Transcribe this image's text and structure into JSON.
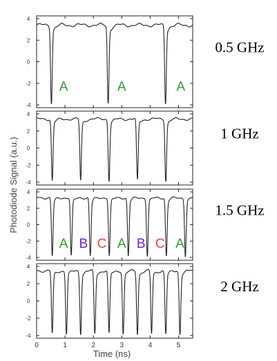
{
  "chart_data": {
    "type": "line",
    "xlabel": "Time (ns)",
    "ylabel": "Photodiode Signal (a.u.)",
    "xlim": [
      0,
      5.5
    ],
    "ylim": [
      -4,
      4
    ],
    "x_ticks": [
      "0",
      "1",
      "2",
      "3",
      "4",
      "5"
    ],
    "y_ticks": [
      "4",
      "2",
      "0",
      "-2",
      "-4"
    ],
    "grid": false,
    "legend": "none",
    "colors": {
      "A": "#2e9a2e",
      "B": "#6a22d8",
      "C": "#f0403c",
      "trace": "#222222"
    },
    "panels": [
      {
        "label": "0.5 GHz",
        "baseline": 3.4,
        "dip_min": -3.8,
        "dip_times": [
          0.52,
          2.52,
          4.54
        ],
        "annotations": [
          {
            "text": "A",
            "x": 0.95,
            "y": -2.3
          },
          {
            "text": "A",
            "x": 3.0,
            "y": -2.3
          },
          {
            "text": "A",
            "x": 5.08,
            "y": -2.3
          }
        ]
      },
      {
        "label": "1 GHz",
        "baseline": 3.4,
        "dip_min": -3.8,
        "dip_times": [
          0.55,
          1.55,
          2.55,
          3.55,
          4.55
        ],
        "annotations": []
      },
      {
        "label": "1.5 GHz",
        "baseline": 3.3,
        "dip_min": -3.8,
        "dip_times": [
          0.55,
          1.22,
          1.89,
          2.56,
          3.23,
          3.9,
          4.57,
          5.24
        ],
        "annotations": [
          {
            "text": "A",
            "x": 0.95,
            "y": -2.3
          },
          {
            "text": "B",
            "x": 1.65,
            "y": -2.3
          },
          {
            "text": "C",
            "x": 2.3,
            "y": -2.3
          },
          {
            "text": "A",
            "x": 3.0,
            "y": -2.3
          },
          {
            "text": "B",
            "x": 3.68,
            "y": -2.3
          },
          {
            "text": "C",
            "x": 4.35,
            "y": -2.3
          },
          {
            "text": "A",
            "x": 5.05,
            "y": -2.3
          }
        ]
      },
      {
        "label": "2 GHz",
        "baseline": 3.5,
        "dip_min": -3.8,
        "dip_times": [
          0.55,
          1.05,
          1.55,
          2.05,
          2.55,
          3.05,
          3.55,
          4.05,
          4.55,
          5.05
        ],
        "annotations": []
      }
    ]
  }
}
